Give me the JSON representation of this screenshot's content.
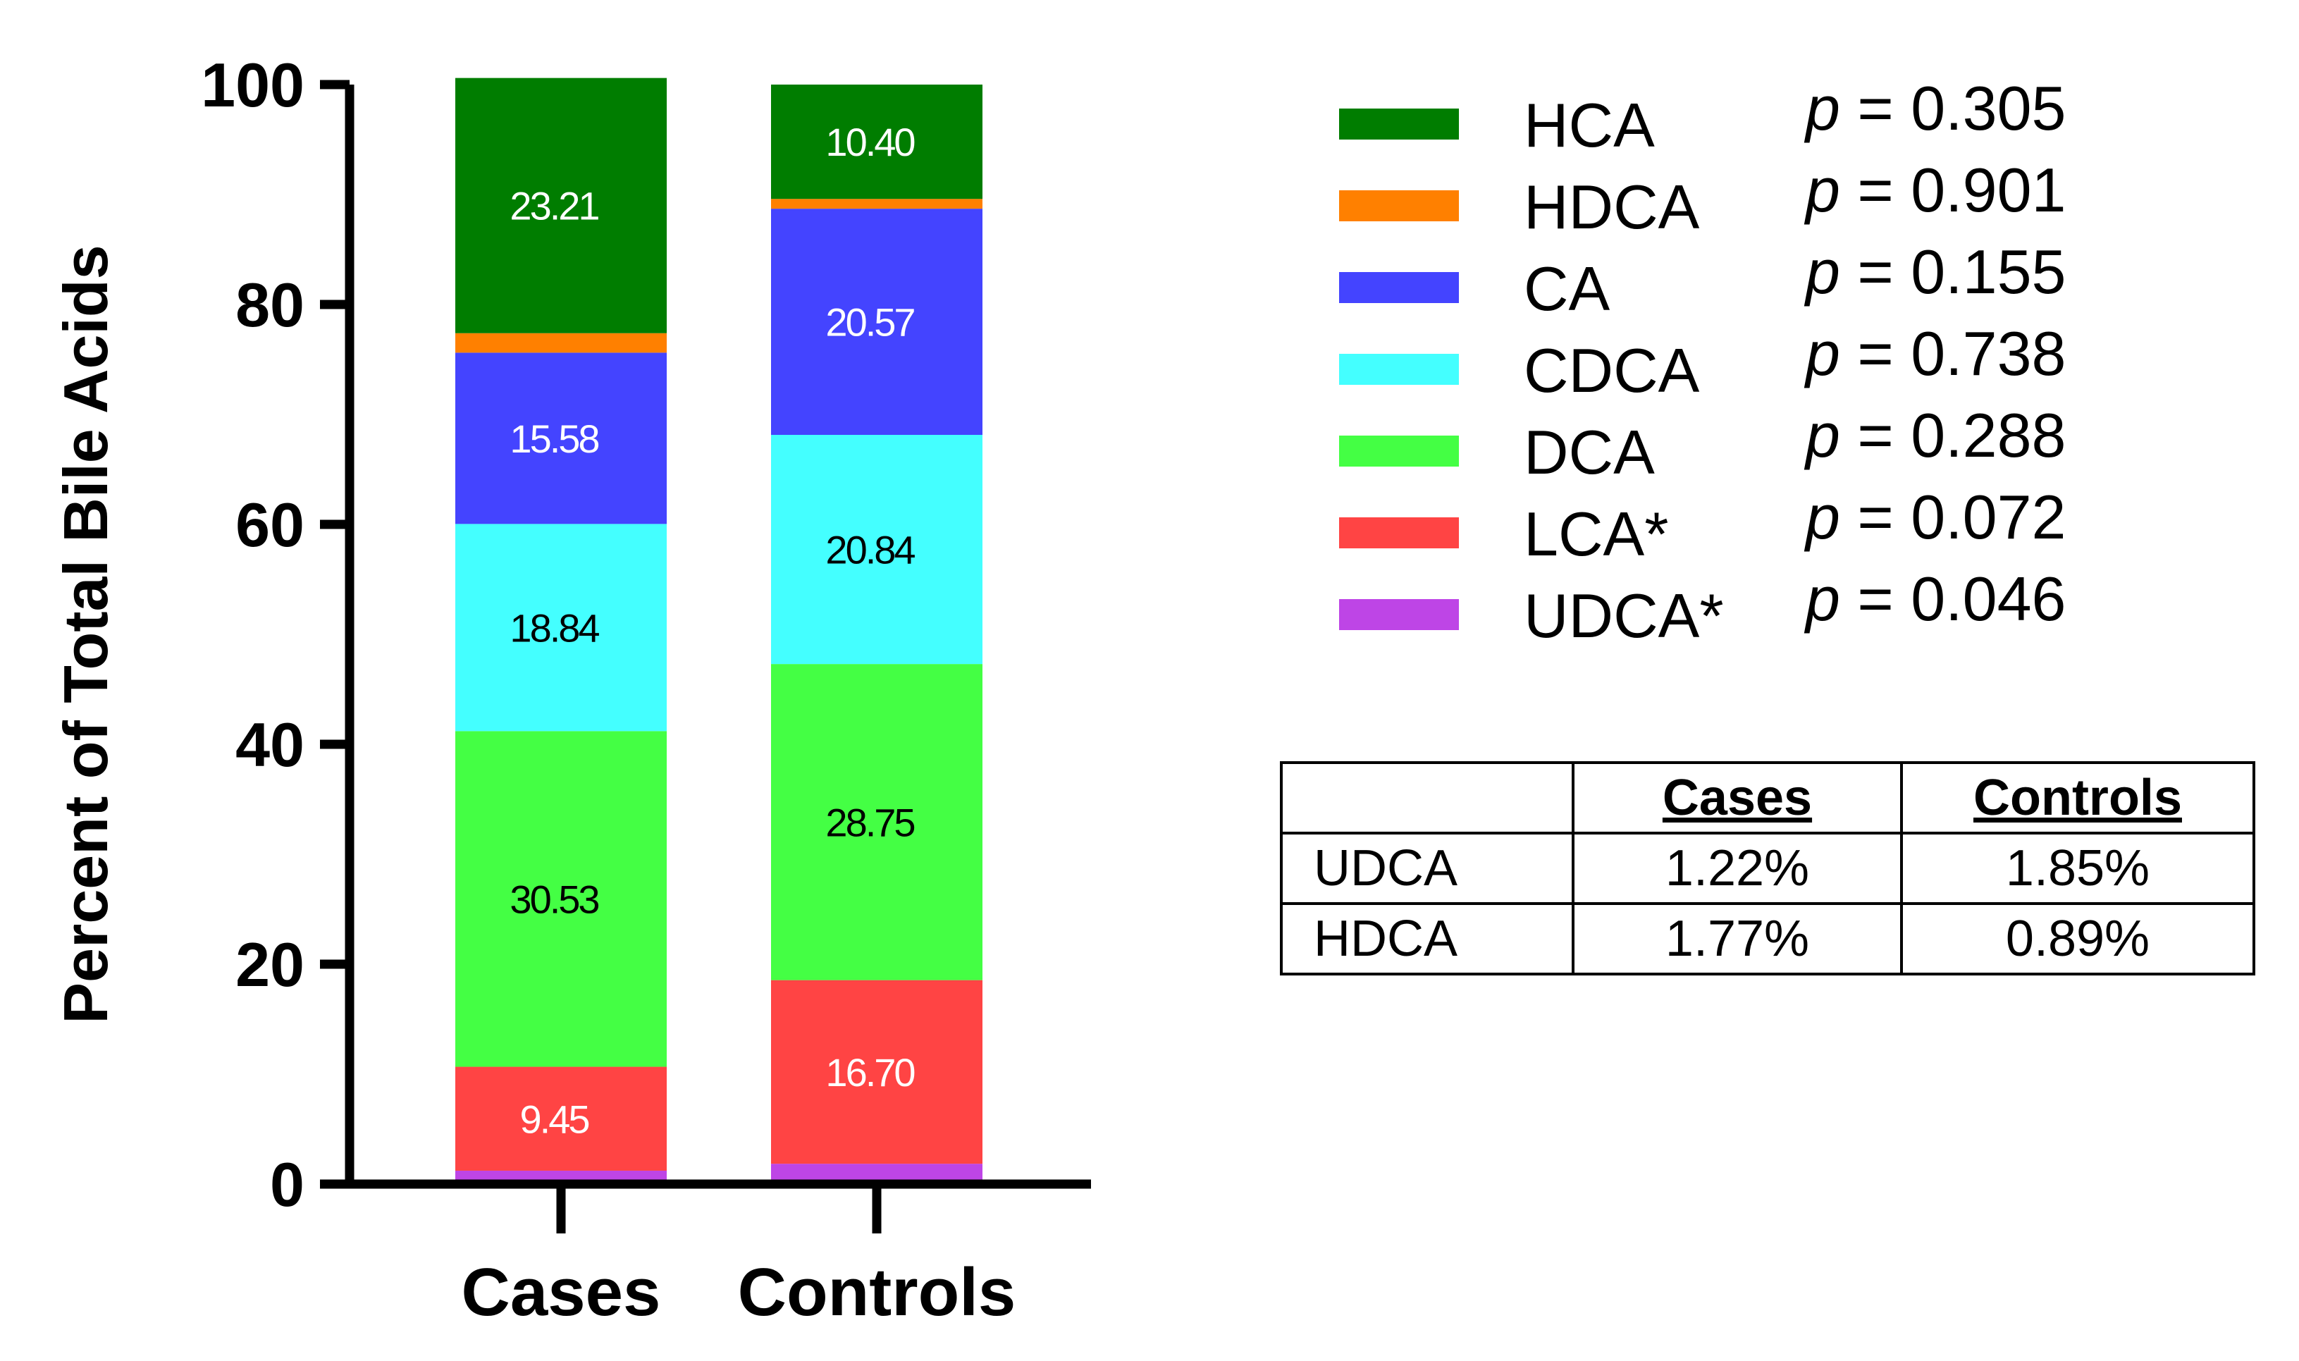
{
  "chart_data": {
    "type": "bar",
    "stacked": true,
    "ylabel": "Percent of Total Bile Acids",
    "xlabel": "",
    "ylim": [
      0,
      100
    ],
    "yticks": [
      "0",
      "20",
      "40",
      "60",
      "80",
      "100"
    ],
    "categories": [
      "Cases",
      "Controls"
    ],
    "series": [
      {
        "name": "UDCA*",
        "color": "#BE45E6",
        "label_color": "#ffffff",
        "values": [
          1.22,
          1.85
        ],
        "labels": [
          "",
          ""
        ]
      },
      {
        "name": "LCA*",
        "color": "#FF4444",
        "label_color": "#ffffff",
        "values": [
          9.45,
          16.7
        ],
        "labels": [
          "9.45",
          "16.70"
        ]
      },
      {
        "name": "DCA",
        "color": "#44FF44",
        "label_color": "#000000",
        "values": [
          30.53,
          28.75
        ],
        "labels": [
          "30.53",
          "28.75"
        ]
      },
      {
        "name": "CDCA",
        "color": "#44FFFF",
        "label_color": "#000000",
        "values": [
          18.84,
          20.84
        ],
        "labels": [
          "18.84",
          "20.84"
        ]
      },
      {
        "name": "CA",
        "color": "#4444FF",
        "label_color": "#ffffff",
        "values": [
          15.58,
          20.57
        ],
        "labels": [
          "15.58",
          "20.57"
        ]
      },
      {
        "name": "HDCA",
        "color": "#FF8000",
        "label_color": "#ffffff",
        "values": [
          1.77,
          0.89
        ],
        "labels": [
          "",
          ""
        ]
      },
      {
        "name": "HCA",
        "color": "#007D00",
        "label_color": "#ffffff",
        "values": [
          23.21,
          10.4
        ],
        "labels": [
          "23.21",
          "10.40"
        ]
      }
    ],
    "legend": [
      {
        "name": "HCA",
        "color": "#007D00",
        "p_label": "p",
        "p_value": " = 0.305"
      },
      {
        "name": "HDCA",
        "color": "#FF8000",
        "p_label": "p",
        "p_value": " = 0.901"
      },
      {
        "name": "CA",
        "color": "#4444FF",
        "p_label": "p",
        "p_value": " = 0.155"
      },
      {
        "name": "CDCA",
        "color": "#44FFFF",
        "p_label": "p",
        "p_value": " = 0.738"
      },
      {
        "name": "DCA",
        "color": "#44FF44",
        "p_label": "p",
        "p_value": " = 0.288"
      },
      {
        "name": "LCA*",
        "color": "#FF4444",
        "p_label": "p",
        "p_value": " = 0.072"
      },
      {
        "name": "UDCA*",
        "color": "#BE45E6",
        "p_label": "p",
        "p_value": " = 0.046"
      }
    ],
    "legend_placement": "right"
  },
  "table": {
    "headers": [
      "",
      "Cases",
      "Controls"
    ],
    "rows": [
      [
        "UDCA",
        "1.22%",
        "1.85%"
      ],
      [
        "HDCA",
        "1.77%",
        "0.89%"
      ]
    ]
  }
}
